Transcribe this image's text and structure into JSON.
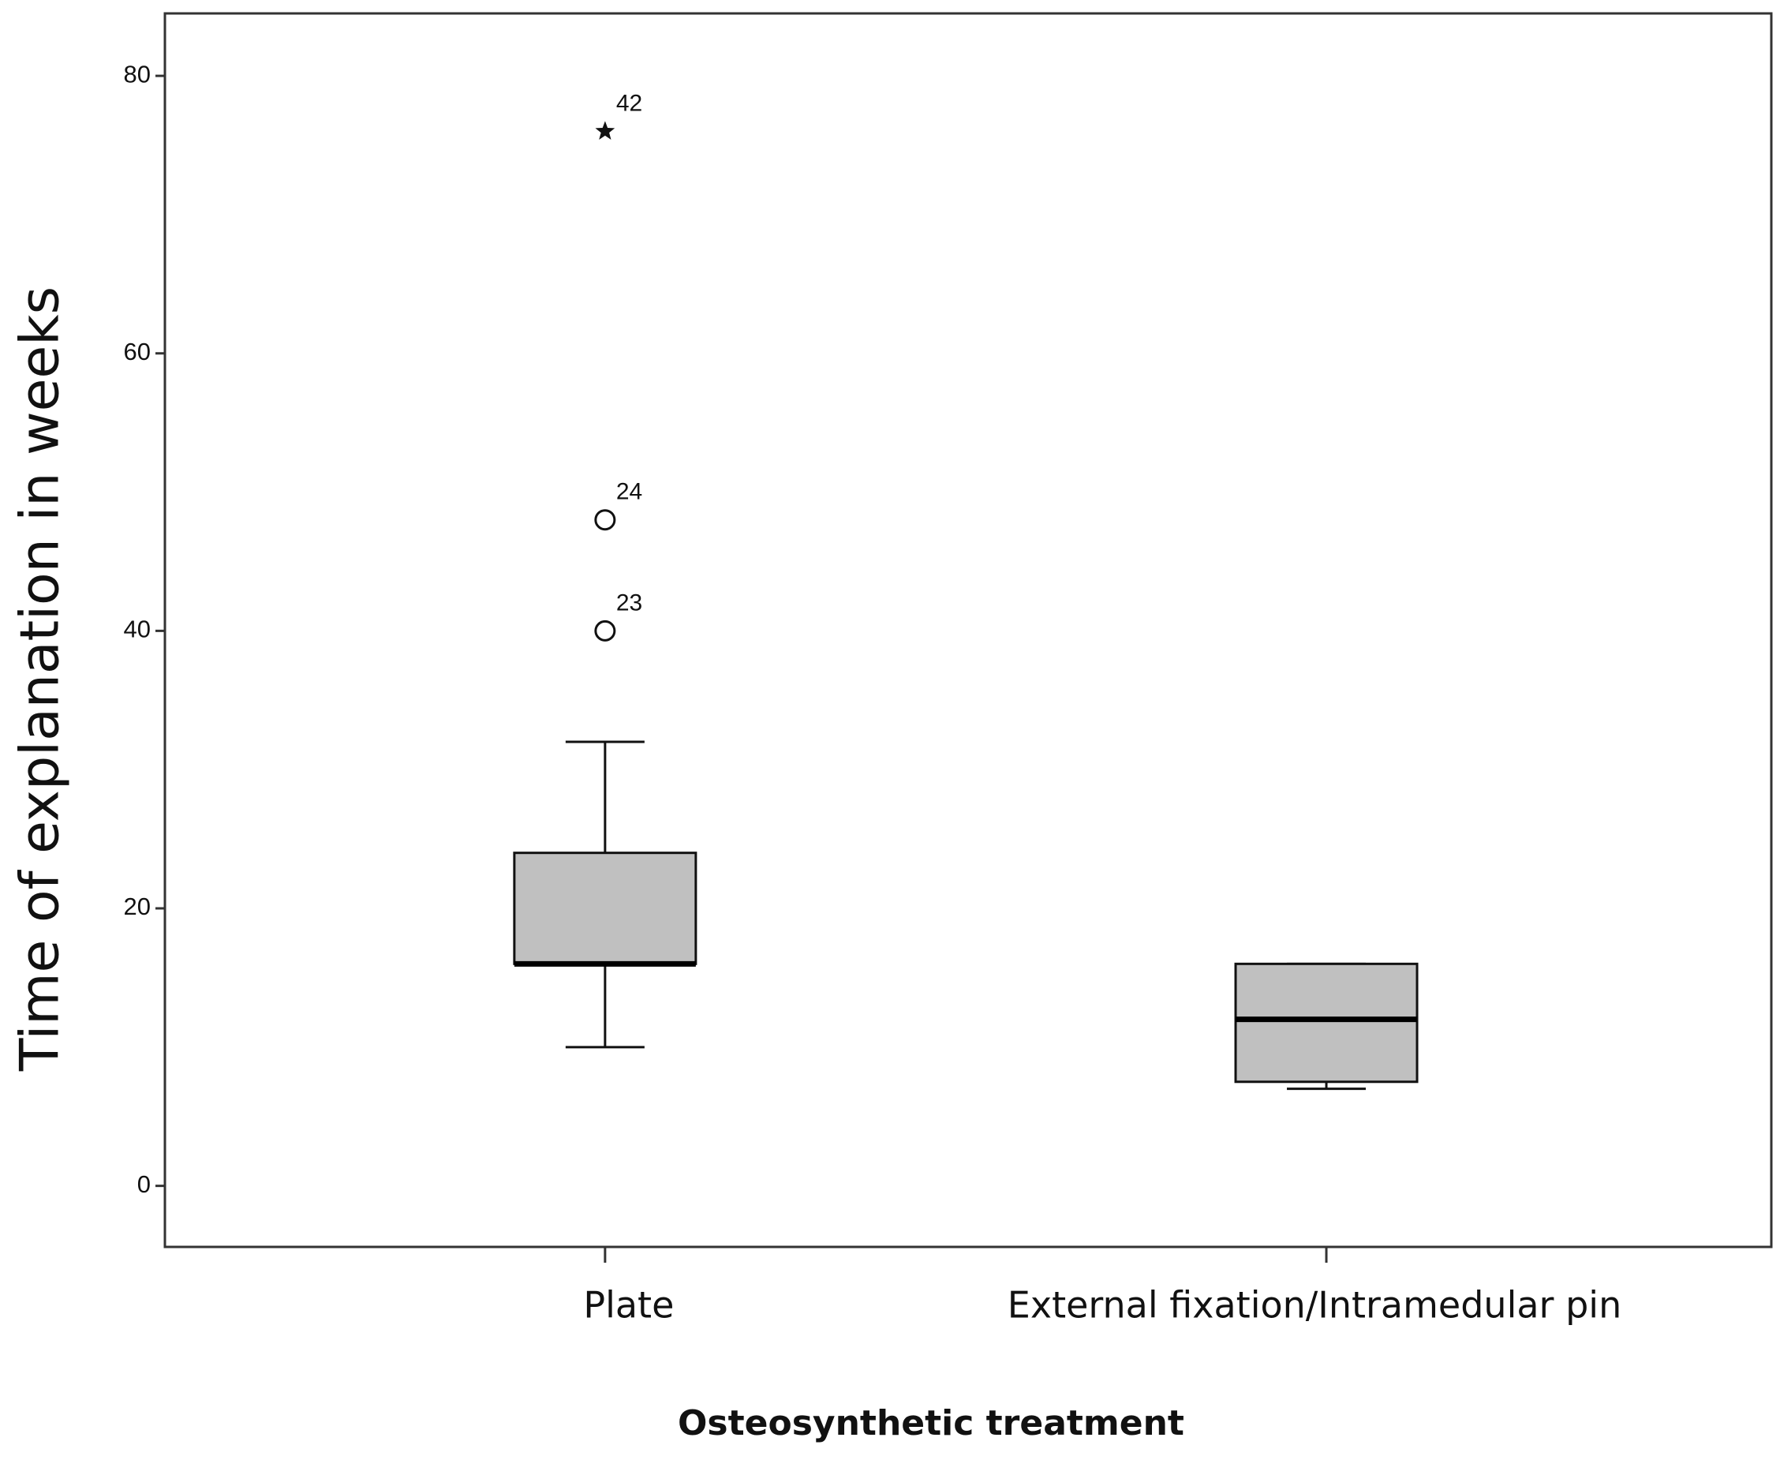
{
  "chart_data": {
    "type": "boxplot",
    "x_label": "Osteosynthetic treatment",
    "y_label": "Time of explanation in weeks",
    "categories": [
      "Plate",
      "External fixation/Intramedular pin"
    ],
    "boxes": [
      {
        "min": 10,
        "q1": 16,
        "median": 16,
        "q3": 24,
        "max": 32,
        "outliers": [
          {
            "value": 40,
            "label": "23",
            "marker": "circle"
          },
          {
            "value": 48,
            "label": "24",
            "marker": "circle"
          },
          {
            "value": 76,
            "label": "42",
            "marker": "star"
          }
        ]
      },
      {
        "min": 7,
        "q1": 7.5,
        "median": 12,
        "q3": 16,
        "max": 16,
        "outliers": []
      }
    ],
    "color": "#c0c0c0",
    "ylim": [
      -4.4,
      84.5
    ],
    "yticks": [
      0,
      20,
      40,
      60,
      80
    ],
    "grid": false
  }
}
